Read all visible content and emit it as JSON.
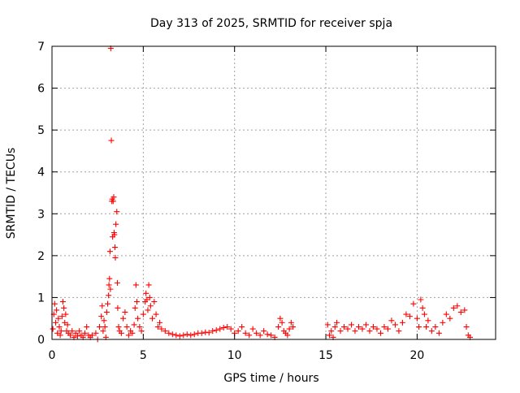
{
  "chart_data": {
    "type": "scatter",
    "title": "Day 313 of 2025, SRMTID for receiver spja",
    "xlabel": "GPS time / hours",
    "ylabel": "SRMTID / TECUs",
    "xlim": [
      0,
      24.3
    ],
    "ylim": [
      0,
      7
    ],
    "xticks": [
      0,
      5,
      10,
      15,
      20
    ],
    "yticks": [
      0,
      1,
      2,
      3,
      4,
      5,
      6,
      7
    ],
    "grid": true,
    "marker": "plus",
    "series": [
      {
        "name": "SRMTID",
        "color": "#ff0000",
        "points": [
          [
            0.05,
            0.25
          ],
          [
            0.1,
            0.6
          ],
          [
            0.15,
            0.85
          ],
          [
            0.2,
            0.4
          ],
          [
            0.25,
            0.7
          ],
          [
            0.3,
            0.15
          ],
          [
            0.35,
            0.5
          ],
          [
            0.4,
            0.3
          ],
          [
            0.45,
            0.1
          ],
          [
            0.5,
            0.2
          ],
          [
            0.55,
            0.55
          ],
          [
            0.6,
            0.9
          ],
          [
            0.65,
            0.75
          ],
          [
            0.7,
            0.4
          ],
          [
            0.75,
            0.6
          ],
          [
            0.8,
            0.2
          ],
          [
            0.85,
            0.35
          ],
          [
            0.9,
            0.15
          ],
          [
            1.0,
            0.1
          ],
          [
            1.1,
            0.2
          ],
          [
            1.2,
            0.05
          ],
          [
            1.3,
            0.15
          ],
          [
            1.4,
            0.08
          ],
          [
            1.5,
            0.2
          ],
          [
            1.6,
            0.1
          ],
          [
            1.7,
            0.05
          ],
          [
            1.8,
            0.15
          ],
          [
            1.9,
            0.3
          ],
          [
            2.0,
            0.1
          ],
          [
            2.1,
            0.05
          ],
          [
            2.2,
            0.1
          ],
          [
            2.4,
            0.15
          ],
          [
            2.5,
            0.0
          ],
          [
            2.6,
            0.3
          ],
          [
            2.7,
            0.55
          ],
          [
            2.75,
            0.8
          ],
          [
            2.8,
            0.2
          ],
          [
            2.85,
            0.45
          ],
          [
            2.9,
            0.3
          ],
          [
            2.95,
            0.05
          ],
          [
            3.0,
            0.65
          ],
          [
            3.05,
            0.85
          ],
          [
            3.1,
            1.05
          ],
          [
            3.12,
            1.3
          ],
          [
            3.15,
            1.45
          ],
          [
            3.18,
            2.1
          ],
          [
            3.2,
            1.2
          ],
          [
            3.22,
            6.95
          ],
          [
            3.25,
            4.75
          ],
          [
            3.28,
            3.3
          ],
          [
            3.3,
            3.35
          ],
          [
            3.32,
            2.45
          ],
          [
            3.35,
            3.3
          ],
          [
            3.38,
            3.4
          ],
          [
            3.4,
            2.55
          ],
          [
            3.42,
            2.5
          ],
          [
            3.45,
            2.2
          ],
          [
            3.47,
            1.95
          ],
          [
            3.5,
            2.75
          ],
          [
            3.55,
            3.05
          ],
          [
            3.58,
            1.35
          ],
          [
            3.6,
            0.75
          ],
          [
            3.65,
            0.3
          ],
          [
            3.7,
            0.2
          ],
          [
            3.8,
            0.15
          ],
          [
            3.9,
            0.5
          ],
          [
            4.0,
            0.65
          ],
          [
            4.1,
            0.3
          ],
          [
            4.2,
            0.1
          ],
          [
            4.3,
            0.2
          ],
          [
            4.4,
            0.15
          ],
          [
            4.5,
            0.35
          ],
          [
            4.55,
            0.75
          ],
          [
            4.6,
            1.3
          ],
          [
            4.65,
            0.9
          ],
          [
            4.7,
            0.5
          ],
          [
            4.8,
            0.3
          ],
          [
            4.9,
            0.2
          ],
          [
            5.0,
            0.6
          ],
          [
            5.1,
            0.9
          ],
          [
            5.15,
            1.1
          ],
          [
            5.2,
            0.95
          ],
          [
            5.25,
            0.7
          ],
          [
            5.3,
            1.3
          ],
          [
            5.35,
            1.0
          ],
          [
            5.4,
            0.8
          ],
          [
            5.5,
            0.5
          ],
          [
            5.6,
            0.9
          ],
          [
            5.7,
            0.6
          ],
          [
            5.8,
            0.3
          ],
          [
            5.9,
            0.4
          ],
          [
            6.0,
            0.25
          ],
          [
            6.2,
            0.2
          ],
          [
            6.4,
            0.15
          ],
          [
            6.6,
            0.12
          ],
          [
            6.8,
            0.1
          ],
          [
            7.0,
            0.08
          ],
          [
            7.2,
            0.1
          ],
          [
            7.4,
            0.12
          ],
          [
            7.6,
            0.1
          ],
          [
            7.8,
            0.12
          ],
          [
            8.0,
            0.15
          ],
          [
            8.2,
            0.15
          ],
          [
            8.4,
            0.17
          ],
          [
            8.6,
            0.16
          ],
          [
            8.8,
            0.2
          ],
          [
            9.0,
            0.22
          ],
          [
            9.2,
            0.25
          ],
          [
            9.4,
            0.28
          ],
          [
            9.6,
            0.3
          ],
          [
            9.8,
            0.25
          ],
          [
            10.0,
            0.15
          ],
          [
            10.2,
            0.2
          ],
          [
            10.4,
            0.3
          ],
          [
            10.6,
            0.15
          ],
          [
            10.8,
            0.1
          ],
          [
            11.0,
            0.25
          ],
          [
            11.2,
            0.15
          ],
          [
            11.4,
            0.1
          ],
          [
            11.6,
            0.2
          ],
          [
            11.8,
            0.12
          ],
          [
            12.0,
            0.1
          ],
          [
            12.2,
            0.05
          ],
          [
            12.4,
            0.3
          ],
          [
            12.5,
            0.5
          ],
          [
            12.6,
            0.4
          ],
          [
            12.7,
            0.2
          ],
          [
            12.8,
            0.15
          ],
          [
            12.9,
            0.1
          ],
          [
            13.0,
            0.25
          ],
          [
            13.1,
            0.4
          ],
          [
            13.2,
            0.3
          ],
          [
            15.1,
            0.35
          ],
          [
            15.2,
            0.1
          ],
          [
            15.3,
            0.2
          ],
          [
            15.4,
            0.05
          ],
          [
            15.5,
            0.3
          ],
          [
            15.6,
            0.4
          ],
          [
            15.8,
            0.2
          ],
          [
            16.0,
            0.3
          ],
          [
            16.2,
            0.25
          ],
          [
            16.4,
            0.35
          ],
          [
            16.6,
            0.2
          ],
          [
            16.8,
            0.3
          ],
          [
            17.0,
            0.25
          ],
          [
            17.2,
            0.35
          ],
          [
            17.4,
            0.2
          ],
          [
            17.6,
            0.3
          ],
          [
            17.8,
            0.25
          ],
          [
            18.0,
            0.15
          ],
          [
            18.2,
            0.3
          ],
          [
            18.4,
            0.25
          ],
          [
            18.6,
            0.45
          ],
          [
            18.8,
            0.35
          ],
          [
            19.0,
            0.2
          ],
          [
            19.2,
            0.4
          ],
          [
            19.4,
            0.6
          ],
          [
            19.6,
            0.55
          ],
          [
            19.8,
            0.85
          ],
          [
            20.0,
            0.5
          ],
          [
            20.1,
            0.3
          ],
          [
            20.2,
            0.95
          ],
          [
            20.3,
            0.75
          ],
          [
            20.4,
            0.6
          ],
          [
            20.5,
            0.3
          ],
          [
            20.6,
            0.45
          ],
          [
            20.8,
            0.2
          ],
          [
            21.0,
            0.3
          ],
          [
            21.2,
            0.15
          ],
          [
            21.4,
            0.4
          ],
          [
            21.6,
            0.6
          ],
          [
            21.8,
            0.5
          ],
          [
            22.0,
            0.75
          ],
          [
            22.2,
            0.8
          ],
          [
            22.4,
            0.65
          ],
          [
            22.6,
            0.7
          ],
          [
            22.7,
            0.3
          ],
          [
            22.8,
            0.1
          ],
          [
            22.9,
            0.05
          ]
        ]
      }
    ]
  }
}
